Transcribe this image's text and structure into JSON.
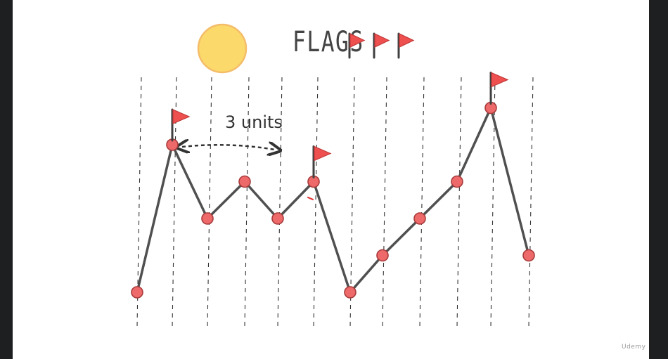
{
  "title": "FLAGS",
  "distance_label": "3 units",
  "watermark": "Udemy",
  "colors": {
    "line": "#505050",
    "point_fill": "#ee6a6a",
    "point_stroke": "#a83a3a",
    "flag": "#ee5050",
    "flag_pole": "#404040",
    "sun_fill": "#fcd96b",
    "sun_stroke": "#f4bd6a",
    "guide": "#333333"
  },
  "chart_data": {
    "type": "line",
    "x": [
      0,
      1,
      2,
      3,
      4,
      5,
      6,
      7,
      8,
      9,
      10,
      11
    ],
    "values": [
      1,
      5,
      3,
      4,
      3,
      4,
      1,
      2,
      3,
      4,
      6,
      2
    ],
    "peaks": [
      1,
      5,
      10
    ],
    "title_flag_icons": 3,
    "distance_arrow": {
      "from": 1,
      "to": 4,
      "label": "3 units"
    }
  }
}
